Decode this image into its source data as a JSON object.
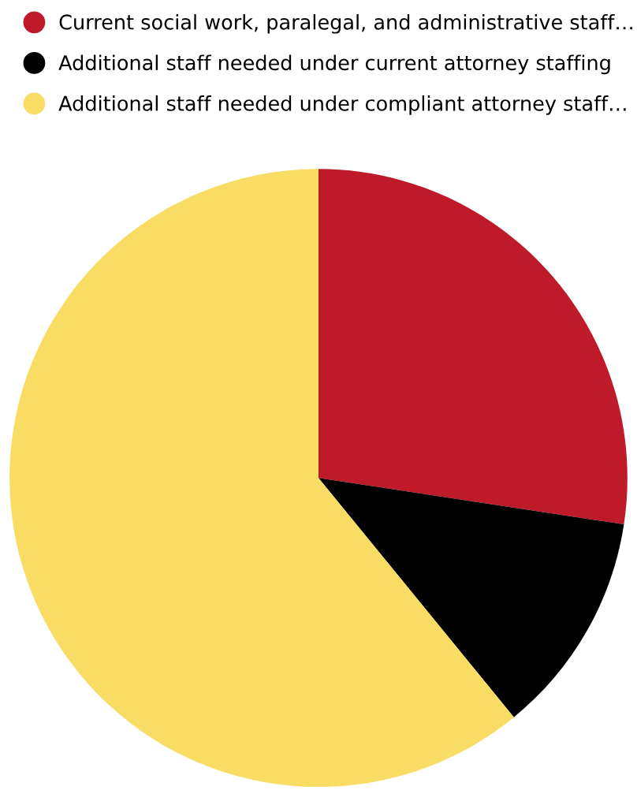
{
  "chart_data": {
    "type": "pie",
    "categories": [
      "Current social work, paralegal, and administrative staff…",
      "Additional staff needed under current attorney staffing",
      "Additional staff needed under compliant attorney staff…"
    ],
    "values": [
      27.4,
      11.7,
      60.9
    ],
    "colors": [
      "#be1a2a",
      "#000000",
      "#f9dc64"
    ],
    "legend": "top left"
  }
}
